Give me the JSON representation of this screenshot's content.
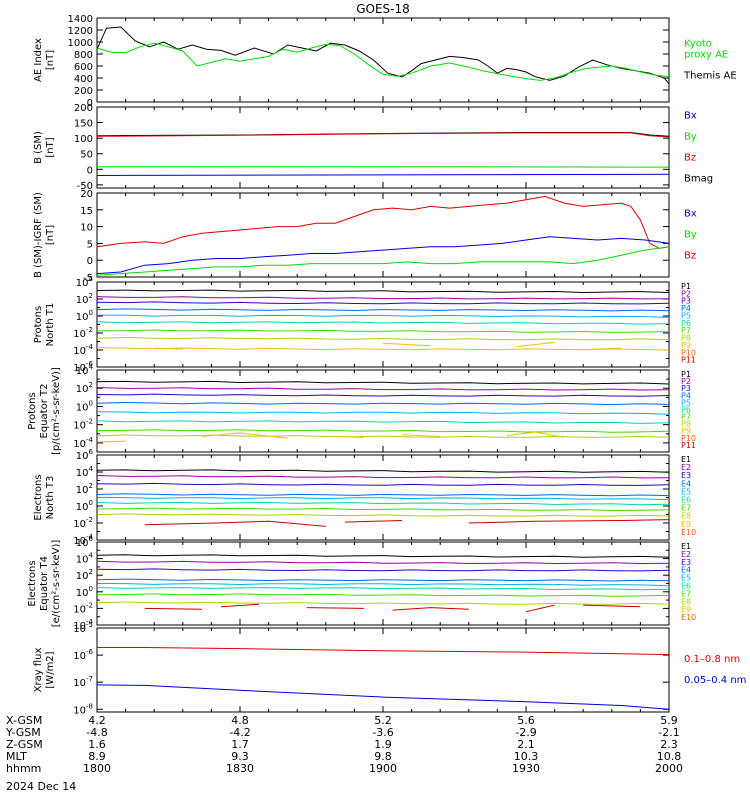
{
  "title": "GOES-18",
  "date_label": "2024 Dec 14",
  "colors": {
    "black": "#000000",
    "red": "#dd0000",
    "green": "#00dd00",
    "blue": "#0000dd",
    "ch": [
      "#000000",
      "#9a009a",
      "#3300cc",
      "#0066ff",
      "#00b4e6",
      "#00d8a8",
      "#40dd00",
      "#a8d800",
      "#f0c000",
      "#ff6000",
      "#cc0000"
    ]
  },
  "ephemeris": {
    "row_labels": [
      "X-GSM",
      "Y-GSM",
      "Z-GSM",
      "MLT",
      "hhmm"
    ],
    "columns": [
      {
        "x": "4.2",
        "y": "-4.8",
        "z": "1.6",
        "mlt": "8.9",
        "hhmm": "1800"
      },
      {
        "x": "4.8",
        "y": "-4.2",
        "z": "1.7",
        "mlt": "9.3",
        "hhmm": "1830"
      },
      {
        "x": "5.2",
        "y": "-3.6",
        "z": "1.9",
        "mlt": "9.8",
        "hhmm": "1900"
      },
      {
        "x": "5.6",
        "y": "-2.9",
        "z": "2.1",
        "mlt": "10.3",
        "hhmm": "1930"
      },
      {
        "x": "5.9",
        "y": "-2.1",
        "z": "2.3",
        "mlt": "10.8",
        "hhmm": "2000"
      }
    ]
  },
  "chart_data": [
    {
      "type": "line",
      "ylabel": [
        "AE Index",
        "[nT]"
      ],
      "ylim": [
        0,
        1400
      ],
      "yticks": [
        "0",
        "200",
        "400",
        "600",
        "800",
        "1000",
        "1200",
        "1400"
      ],
      "legend": [
        {
          "lines": [
            "Kyoto",
            "proxy AE"
          ],
          "color": "green"
        },
        {
          "lines": [
            "Themis AE"
          ],
          "color": "black"
        }
      ],
      "series": [
        {
          "name": "Themis AE",
          "color": "black",
          "t": [
            0,
            2,
            5,
            8,
            11,
            14,
            17,
            20,
            23,
            26,
            29,
            33,
            37,
            40,
            43,
            46,
            49,
            52,
            55,
            58,
            61,
            64,
            66,
            68,
            71,
            74,
            77,
            80,
            82,
            84,
            86,
            88,
            90,
            92,
            95,
            98,
            101,
            104,
            107,
            110,
            113,
            116,
            119,
            120
          ],
          "v": [
            880,
            1230,
            1250,
            1020,
            920,
            1000,
            880,
            950,
            880,
            860,
            780,
            900,
            800,
            950,
            900,
            850,
            980,
            950,
            850,
            700,
            480,
            420,
            520,
            640,
            700,
            760,
            740,
            700,
            600,
            480,
            560,
            540,
            500,
            420,
            360,
            430,
            580,
            700,
            620,
            560,
            520,
            480,
            400,
            300
          ]
        },
        {
          "name": "Kyoto proxy AE",
          "color": "green",
          "t": [
            0,
            3,
            6,
            9,
            12,
            15,
            18,
            21,
            24,
            27,
            30,
            33,
            36,
            39,
            42,
            45,
            48,
            51,
            54,
            57,
            60,
            63,
            66,
            70,
            74,
            78,
            81,
            84,
            87,
            90,
            93,
            96,
            99,
            102,
            105,
            108,
            111,
            114,
            117,
            120
          ],
          "v": [
            900,
            830,
            820,
            920,
            980,
            920,
            850,
            600,
            660,
            720,
            680,
            720,
            760,
            880,
            830,
            900,
            960,
            940,
            800,
            620,
            460,
            430,
            480,
            600,
            650,
            580,
            520,
            470,
            430,
            390,
            360,
            400,
            480,
            550,
            580,
            600,
            560,
            500,
            450,
            420
          ]
        }
      ]
    },
    {
      "type": "line",
      "ylabel": [
        "B (SM)",
        "[nT]"
      ],
      "ylim": [
        -60,
        200
      ],
      "yticks": [
        "-50",
        "0",
        "50",
        "100",
        "150",
        "200"
      ],
      "legend": [
        {
          "lines": [
            "Bx"
          ],
          "color": "blue"
        },
        {
          "lines": [
            "By"
          ],
          "color": "green"
        },
        {
          "lines": [
            "Bz"
          ],
          "color": "red"
        },
        {
          "lines": [
            "Bmag"
          ],
          "color": "black"
        }
      ],
      "series": [
        {
          "name": "Bmag",
          "color": "black",
          "t": [
            0,
            30,
            60,
            90,
            112,
            116,
            120
          ],
          "v": [
            108,
            110,
            115,
            118,
            118,
            110,
            106
          ]
        },
        {
          "name": "Bz",
          "color": "red",
          "t": [
            0,
            30,
            60,
            90,
            112,
            116,
            120
          ],
          "v": [
            106,
            109,
            114,
            117,
            117,
            108,
            104
          ]
        },
        {
          "name": "By",
          "color": "green",
          "t": [
            0,
            60,
            120
          ],
          "v": [
            8,
            8,
            7
          ]
        },
        {
          "name": "Bx",
          "color": "blue",
          "t": [
            0,
            60,
            120
          ],
          "v": [
            -20,
            -18,
            -16
          ]
        }
      ]
    },
    {
      "type": "line",
      "ylabel": [
        "B (SM)-IGRF (SM)",
        "[nT]"
      ],
      "ylim": [
        -5,
        20
      ],
      "yticks": [
        "-5",
        "0",
        "5",
        "10",
        "15",
        "20"
      ],
      "legend": [
        {
          "lines": [
            "Bx"
          ],
          "color": "blue"
        },
        {
          "lines": [
            "By"
          ],
          "color": "green"
        },
        {
          "lines": [
            "Bz"
          ],
          "color": "red"
        }
      ],
      "series": [
        {
          "name": "Bz",
          "color": "red",
          "t": [
            0,
            5,
            10,
            14,
            18,
            22,
            26,
            30,
            34,
            38,
            42,
            46,
            50,
            54,
            58,
            62,
            66,
            70,
            74,
            78,
            82,
            86,
            90,
            94,
            98,
            102,
            106,
            110,
            112,
            114,
            116,
            118,
            120
          ],
          "v": [
            4,
            5,
            5.5,
            5,
            7,
            8,
            8.5,
            9,
            9.5,
            10,
            10,
            11,
            11,
            13,
            15,
            15.5,
            15,
            16,
            15.5,
            16,
            16.5,
            17,
            18,
            19,
            17,
            16,
            16.5,
            17,
            16,
            12,
            5,
            3.5,
            4
          ]
        },
        {
          "name": "Bx",
          "color": "blue",
          "t": [
            0,
            5,
            10,
            15,
            20,
            25,
            30,
            35,
            40,
            45,
            50,
            55,
            60,
            65,
            70,
            75,
            80,
            85,
            90,
            95,
            100,
            105,
            110,
            115,
            120
          ],
          "v": [
            -4,
            -3.5,
            -1.5,
            -1,
            0,
            0.5,
            0.5,
            1,
            1.5,
            2,
            2,
            2.5,
            3,
            3.5,
            4,
            4,
            4.5,
            5,
            6,
            7,
            6.5,
            6,
            6.5,
            6,
            5
          ]
        },
        {
          "name": "By",
          "color": "green",
          "t": [
            0,
            5,
            10,
            15,
            20,
            25,
            30,
            35,
            40,
            45,
            50,
            55,
            60,
            65,
            70,
            75,
            80,
            85,
            90,
            95,
            100,
            105,
            110,
            115,
            120
          ],
          "v": [
            -4.5,
            -4,
            -3.5,
            -3,
            -2.5,
            -2,
            -2,
            -1.5,
            -1.5,
            -1,
            -1,
            -1,
            -1,
            -0.5,
            -1,
            -1,
            -0.5,
            -0.5,
            -0.5,
            -0.5,
            -1,
            0,
            1.5,
            3,
            4
          ]
        }
      ]
    },
    {
      "type": "line",
      "ylabel": [
        "Protons",
        "North T1"
      ],
      "log": true,
      "ylim_exp": [
        -6,
        4
      ],
      "yticks": [
        -6,
        -4,
        -2,
        0,
        2,
        4
      ],
      "channels": [
        "P1",
        "P2",
        "P3",
        "P4",
        "P5",
        "P6",
        "P7",
        "P8",
        "P9",
        "P10",
        "P11"
      ],
      "levels_exp": [
        3.0,
        2.2,
        1.6,
        0.8,
        0.1,
        -0.7,
        -1.7,
        -2.6,
        -3.8
      ],
      "series": [
        {
          "name": "P9",
          "color_index": 8,
          "segments": [
            [
              [
                12,
                -3.8
              ],
              [
                18,
                -3.9
              ]
            ],
            [
              [
                60,
                -3.2
              ],
              [
                70,
                -3.5
              ]
            ],
            [
              [
                88,
                -3.6
              ],
              [
                96,
                -3.1
              ]
            ],
            [
              [
                104,
                -3.9
              ],
              [
                110,
                -3.8
              ]
            ]
          ]
        }
      ]
    },
    {
      "type": "line",
      "ylabel": [
        "Protons",
        "Equator T2",
        "[p/(cm²-s-sr-keV)]"
      ],
      "log": true,
      "ylim_exp": [
        -5,
        4
      ],
      "yticks": [
        -4,
        -2,
        0,
        2,
        4
      ],
      "channels": [
        "P1",
        "P2",
        "P3",
        "P4",
        "P5",
        "P6",
        "P7",
        "P8",
        "P9",
        "P10",
        "P11"
      ],
      "levels_exp": [
        2.7,
        2.0,
        1.3,
        0.4,
        -0.6,
        -1.6,
        -2.6,
        -3.2
      ],
      "series": [
        {
          "name": "P9",
          "color_index": 8,
          "segments": [
            [
              [
                0,
                -3.9
              ],
              [
                6,
                -3.8
              ]
            ],
            [
              [
                22,
                -3.3
              ],
              [
                30,
                -2.9
              ],
              [
                40,
                -3.5
              ]
            ],
            [
              [
                50,
                -3.3
              ],
              [
                56,
                -3.4
              ]
            ],
            [
              [
                64,
                -3.1
              ],
              [
                72,
                -3.3
              ]
            ],
            [
              [
                86,
                -3.2
              ],
              [
                92,
                -2.8
              ],
              [
                98,
                -3.4
              ]
            ]
          ]
        }
      ]
    },
    {
      "type": "line",
      "ylabel": [
        "Electrons",
        "North T3"
      ],
      "log": true,
      "ylim_exp": [
        -4,
        6
      ],
      "yticks": [
        -4,
        -2,
        0,
        2,
        4,
        6
      ],
      "channels": [
        "E1",
        "E2",
        "E3",
        "E4",
        "E5",
        "E6",
        "E7",
        "E8",
        "E9",
        "E10"
      ],
      "levels_exp": [
        4.2,
        3.5,
        2.6,
        1.4,
        1.0,
        0.4,
        -0.3,
        -1.0
      ],
      "series": [
        {
          "name": "E9",
          "color_index": 10,
          "segments": [
            [
              [
                10,
                -2.2
              ],
              [
                25,
                -2.0
              ],
              [
                36,
                -1.8
              ],
              [
                48,
                -2.4
              ]
            ],
            [
              [
                52,
                -1.9
              ],
              [
                64,
                -1.7
              ]
            ],
            [
              [
                78,
                -2.0
              ],
              [
                92,
                -1.8
              ],
              [
                110,
                -1.7
              ],
              [
                120,
                -1.6
              ]
            ]
          ]
        }
      ]
    },
    {
      "type": "line",
      "ylabel": [
        "Electrons",
        "Equator T4",
        "[e/(cm²-s-sr-keV)]"
      ],
      "log": true,
      "ylim_exp": [
        -4,
        6
      ],
      "yticks": [
        -4,
        -2,
        0,
        2,
        4,
        6
      ],
      "channels": [
        "E1",
        "E2",
        "E3",
        "E4",
        "E5",
        "E6",
        "E7",
        "E8",
        "E9",
        "E10"
      ],
      "levels_exp": [
        4.4,
        3.6,
        2.7,
        1.5,
        1.0,
        0.5,
        -0.3,
        -1.3
      ],
      "series": [
        {
          "name": "E9",
          "color_index": 10,
          "segments": [
            [
              [
                10,
                -2.0
              ],
              [
                22,
                -2.1
              ]
            ],
            [
              [
                26,
                -1.8
              ],
              [
                34,
                -1.5
              ]
            ],
            [
              [
                44,
                -1.9
              ],
              [
                56,
                -2.0
              ]
            ],
            [
              [
                62,
                -2.2
              ],
              [
                70,
                -1.9
              ],
              [
                78,
                -2.1
              ]
            ],
            [
              [
                90,
                -2.4
              ],
              [
                96,
                -1.6
              ]
            ],
            [
              [
                102,
                -1.6
              ],
              [
                114,
                -1.8
              ]
            ]
          ]
        }
      ]
    },
    {
      "type": "line",
      "ylabel": [
        "Xray flux",
        "[W/m2]"
      ],
      "log": true,
      "ylim_exp": [
        -8.1,
        -5
      ],
      "yticks": [
        -8,
        -7,
        -6,
        -5
      ],
      "legend": [
        {
          "lines": [
            "0.1–0.8 nm"
          ],
          "color": "red"
        },
        {
          "lines": [
            "0.05–0.4 nm"
          ],
          "color": "blue"
        }
      ],
      "series": [
        {
          "name": "0.1–0.8 nm",
          "color": "red",
          "t": [
            0,
            10,
            30,
            60,
            90,
            110,
            120
          ],
          "v": [
            -5.72,
            -5.72,
            -5.76,
            -5.84,
            -5.89,
            -5.95,
            -5.98
          ]
        },
        {
          "name": "0.05–0.4 nm",
          "color": "blue",
          "t": [
            0,
            10,
            30,
            60,
            90,
            110,
            120
          ],
          "v": [
            -7.1,
            -7.12,
            -7.3,
            -7.55,
            -7.72,
            -7.86,
            -8.0
          ]
        }
      ]
    }
  ]
}
